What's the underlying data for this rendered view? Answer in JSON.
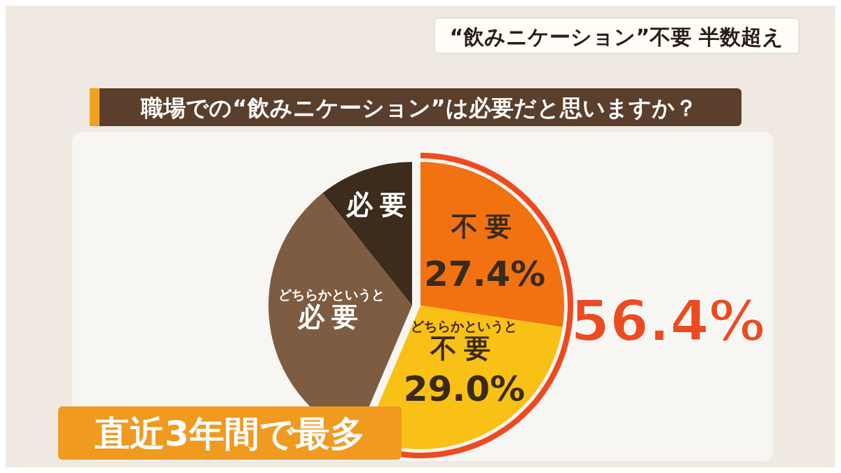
{
  "chart_data": {
    "type": "pie",
    "title": "職場での“飲みニケーション”は必要だと思いますか？",
    "subtitle": "“飲みニケーション”不要 半数超え",
    "categories": [
      "不要",
      "どちらかというと不要",
      "どちらかというと必要",
      "必要"
    ],
    "values": [
      27.4,
      29.0,
      32.9,
      10.7
    ],
    "colors": [
      "#f27212",
      "#f9c115",
      "#7d5c42",
      "#3d2b1b"
    ],
    "value_labels": [
      "27.4%",
      "29.0%",
      null,
      null
    ],
    "annotations": [
      "56.4%",
      "直近3年間で最多"
    ]
  }
}
